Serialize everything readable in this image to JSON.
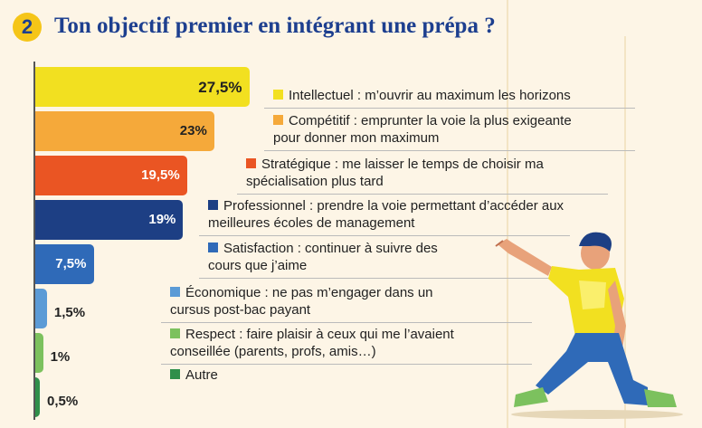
{
  "header": {
    "number": "2",
    "title": "Ton objectif premier en intégrant une prépa ?"
  },
  "chart_data": {
    "type": "bar",
    "orientation": "horizontal",
    "title": "Ton objectif premier en intégrant une prépa ?",
    "xlabel": "",
    "ylabel": "",
    "categories": [
      "Intellectuel : m’ouvrir au maximum les horizons",
      "Compétitif : emprunter la voie la plus exigeante pour donner mon maximum",
      "Stratégique : me laisser le temps de choisir ma spécialisation plus tard",
      "Professionnel : prendre la voie permettant d’accéder aux meilleures écoles de management",
      "Satisfaction : continuer à suivre des cours que j’aime",
      "Économique : ne pas m’engager dans un cursus post-bac payant",
      "Respect : faire plaisir à ceux qui me l’avaient conseillée (parents, profs, amis…)",
      "Autre"
    ],
    "values": [
      27.5,
      23,
      19.5,
      19,
      7.5,
      1.5,
      1,
      0.5
    ],
    "value_labels": [
      "27,5%",
      "23%",
      "19,5%",
      "19%",
      "7,5%",
      "1,5%",
      "1%",
      "0,5%"
    ],
    "colors": [
      "#f2e020",
      "#f5a93a",
      "#ea5523",
      "#1d3f84",
      "#2f6ab8",
      "#5b9bd6",
      "#7cc15e",
      "#2f8f4a"
    ],
    "legend": "right of bars"
  },
  "legend_items": [
    {
      "lines": [
        "Intellectuel : m’ouvrir au maximum les horizons"
      ]
    },
    {
      "lines": [
        "Compétitif : emprunter la voie la plus exigeante",
        "pour donner mon maximum"
      ]
    },
    {
      "lines": [
        "Stratégique : me laisser le temps de choisir ma",
        "spécialisation plus tard"
      ]
    },
    {
      "lines": [
        "Professionnel : prendre la voie permettant d’accéder aux",
        "meilleures écoles de management"
      ]
    },
    {
      "lines": [
        "Satisfaction : continuer à suivre des",
        "cours que j’aime"
      ]
    },
    {
      "lines": [
        "Économique : ne pas m’engager dans un",
        "cursus post-bac payant"
      ]
    },
    {
      "lines": [
        "Respect : faire plaisir à ceux qui me l’avaient",
        "conseillée (parents, profs, amis…)"
      ]
    },
    {
      "lines": [
        "Autre"
      ]
    }
  ],
  "illustration": {
    "icon": "pointing-person-illustration"
  }
}
